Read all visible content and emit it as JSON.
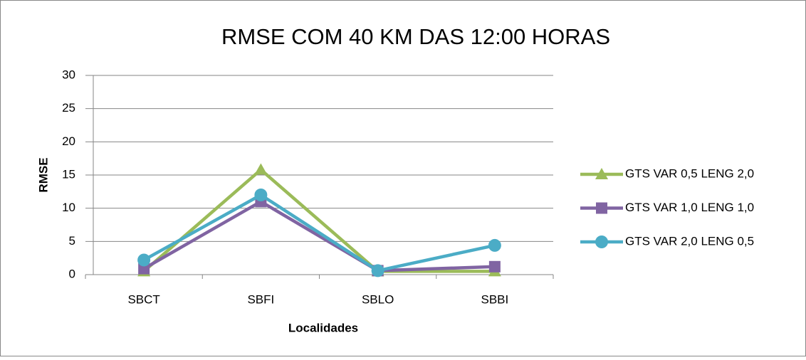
{
  "chart_data": {
    "type": "line",
    "title": "RMSE COM 40 KM DAS 12:00 HORAS",
    "x_label": "Localidades",
    "y_label": "RMSE",
    "categories": [
      "SBCT",
      "SBFI",
      "SBLO",
      "SBBI"
    ],
    "series": [
      {
        "name": "GTS VAR 0,5 LENG 2,0",
        "color": "#9bbb59",
        "marker": "triangle",
        "values": [
          0.5,
          15.8,
          0.5,
          0.5
        ]
      },
      {
        "name": "GTS VAR 1,0 LENG 1,0",
        "color": "#8064a2",
        "marker": "square",
        "values": [
          0.9,
          11,
          0.6,
          1.2
        ]
      },
      {
        "name": "GTS VAR 2,0 LENG 0,5",
        "color": "#4bacc6",
        "marker": "circle",
        "values": [
          2.2,
          12,
          0.6,
          4.4
        ]
      }
    ],
    "ylim": [
      0,
      30
    ],
    "yticks": [
      0,
      5,
      10,
      15,
      20,
      25,
      30
    ],
    "grid": true,
    "legend": "right"
  }
}
